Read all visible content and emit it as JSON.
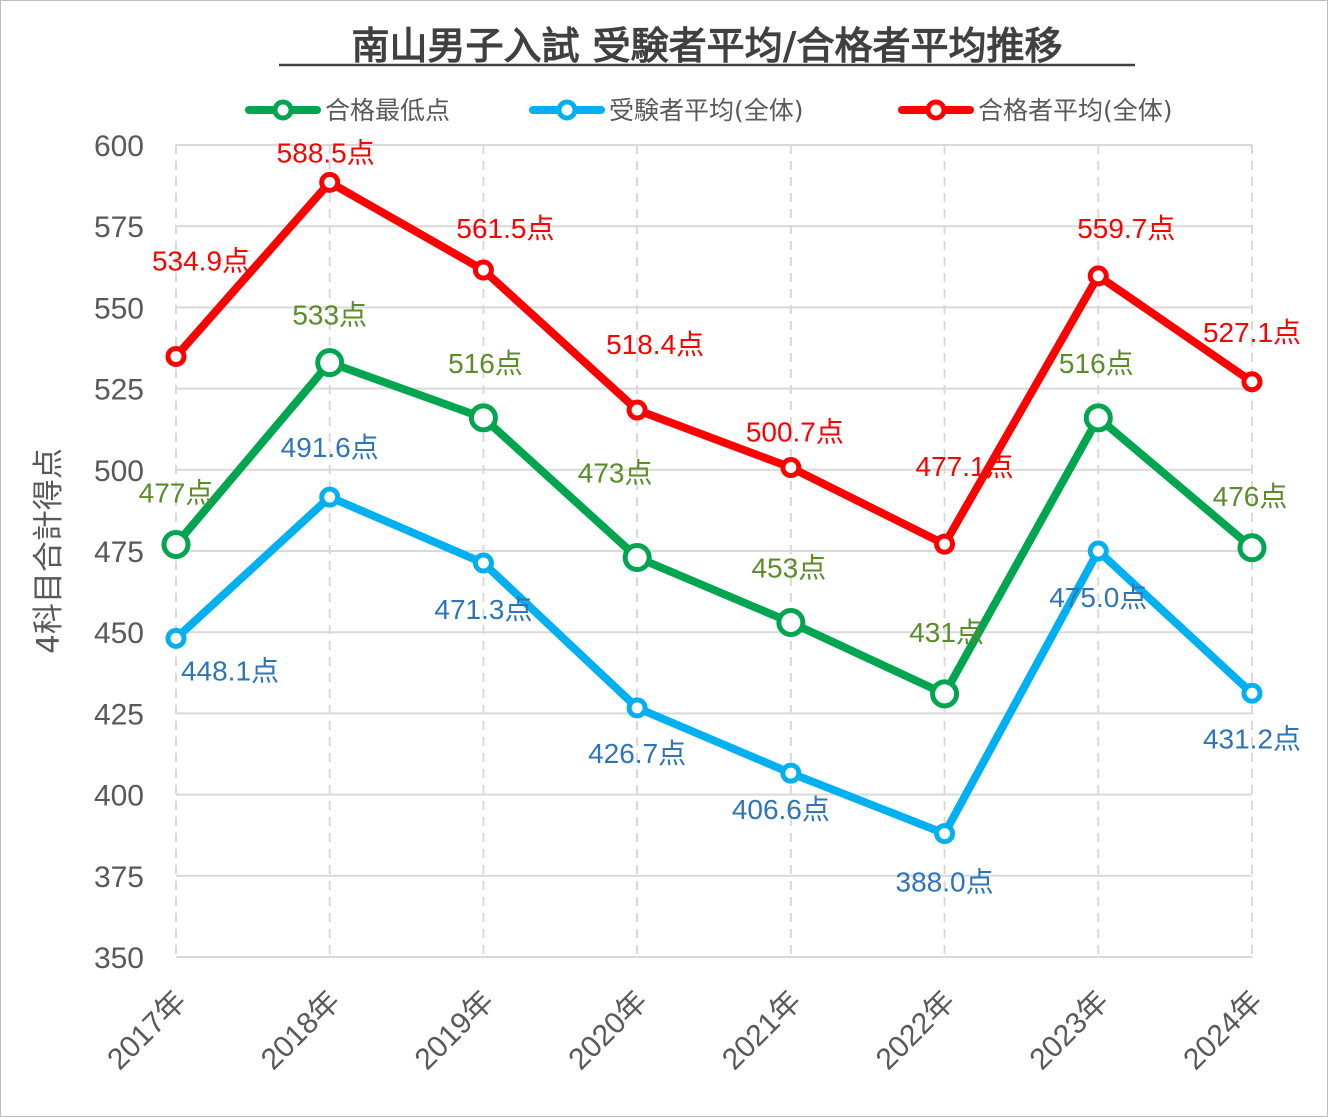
{
  "chart_data": {
    "type": "line",
    "title": "南山男子入試 受験者平均/合格者平均推移",
    "xlabel": "",
    "ylabel": "4科目合計得点",
    "ylim": [
      350,
      600
    ],
    "yticks": [
      350,
      375,
      400,
      425,
      450,
      475,
      500,
      525,
      550,
      575,
      600
    ],
    "categories": [
      "2017年",
      "2018年",
      "2019年",
      "2020年",
      "2021年",
      "2022年",
      "2023年",
      "2024年"
    ],
    "grid": "on (horizontal solid, vertical dashed)",
    "legend": "top",
    "series": [
      {
        "name": "合格最低点",
        "color": "#00a550",
        "label_color": "#5b8c2a",
        "values": [
          477,
          533,
          516,
          473,
          453,
          431,
          516,
          476
        ],
        "labels": [
          "477点",
          "533点",
          "516点",
          "473点",
          "453点",
          "431点",
          "516点",
          "476点"
        ]
      },
      {
        "name": "受験者平均(全体)",
        "color": "#00b0f0",
        "label_color": "#2e75b6",
        "values": [
          448.1,
          491.6,
          471.3,
          426.7,
          406.6,
          388.0,
          475.0,
          431.2
        ],
        "labels": [
          "448.1点",
          "491.6点",
          "471.3点",
          "426.7点",
          "406.6点",
          "388.0点",
          "475.0点",
          "431.2点"
        ]
      },
      {
        "name": "合格者平均(全体)",
        "color": "#ff0000",
        "label_color": "#ff0000",
        "values": [
          534.9,
          588.5,
          561.5,
          518.4,
          500.7,
          477.1,
          559.7,
          527.1
        ],
        "labels": [
          "534.9点",
          "588.5点",
          "561.5点",
          "518.4点",
          "500.7点",
          "477.1点",
          "559.7点",
          "527.1点"
        ]
      }
    ]
  }
}
